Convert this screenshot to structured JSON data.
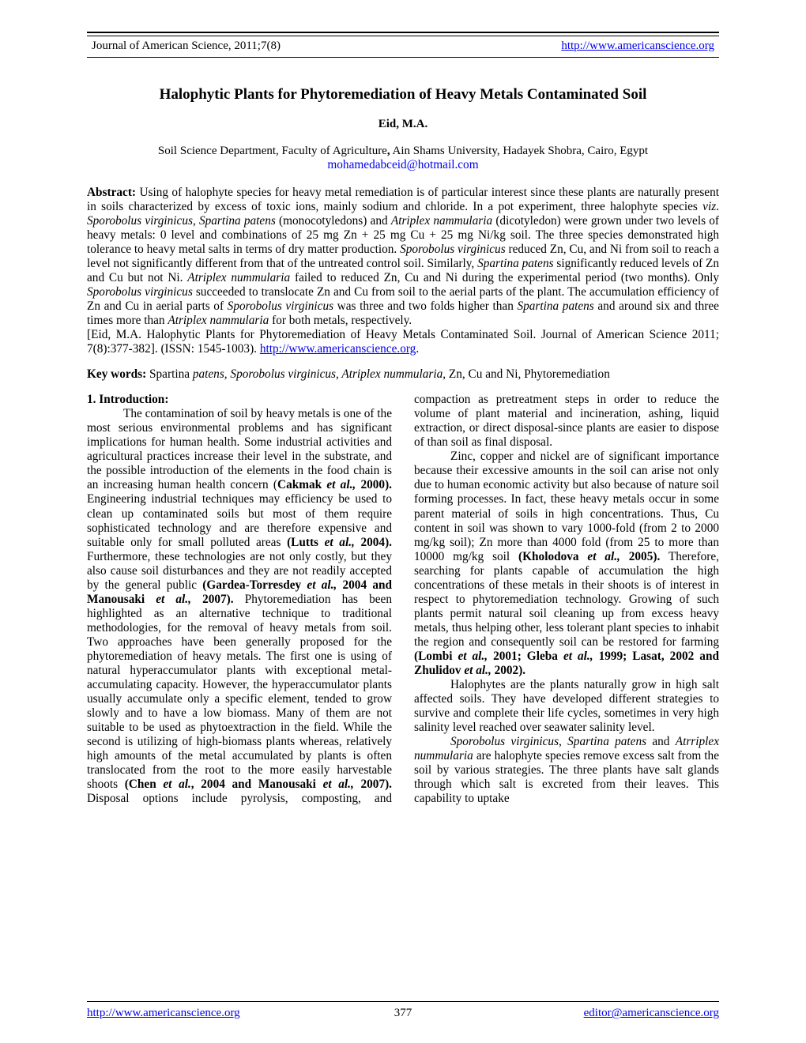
{
  "header": {
    "journal": "Journal of American Science, 2011;7(8)",
    "url_text": "http://www.americanscience.org"
  },
  "title": "Halophytic Plants for Phytoremediation of Heavy Metals Contaminated Soil",
  "author": "Eid, M.A.",
  "affiliation_prefix": "Soil Science Department, Faculty of Agriculture",
  "affiliation_suffix": " Ain Shams University, Hadayek Shobra, Cairo, Egypt",
  "email": "mohamedabceid@hotmail.com",
  "abstract": {
    "label": "Abstract:",
    "pre_viz": " Using of halophyte species for heavy metal remediation is of particular interest since these plants are naturally present in soils characterized by excess of toxic ions, mainly sodium and chloride. In a pot experiment, three halophyte species ",
    "viz": "viz",
    "post_viz_punct": ". ",
    "sp1": "Sporobolus virginicus",
    "sep1": ", ",
    "sp2": "Spartina patens",
    "mid1": " (monocotyledons) and ",
    "sp3": "Atriplex nammularia",
    "post_sp3": " (dicotyledon) were grown under two levels of heavy metals: 0 level and combinations of 25 mg Zn + 25 mg Cu + 25 mg Ni/kg soil. The three species demonstrated high tolerance to heavy metal salts in terms of dry matter production. ",
    "sp1b": "Sporobolus virginicus",
    "mid2": " reduced Zn, Cu, and Ni from soil to reach a level not significantly different from that of the untreated control soil. Similarly, ",
    "sp2b": "Spartina patens",
    "mid3": " significantly reduced levels of Zn and Cu but not Ni. ",
    "sp3b": "Atriplex nummularia",
    "mid4": " failed to reduced Zn, Cu and Ni during the experimental period (two months). Only ",
    "sp1c": "Sporobolus virginicus",
    "mid5": " succeeded to translocate Zn and Cu from soil to the aerial parts of the plant. The accumulation efficiency of Zn and Cu in aerial parts of ",
    "sp1d": "Sporobolus virginicus",
    "mid6": " was three and two folds higher than ",
    "sp2c": "Spartina patens",
    "mid7": " and around six and three times more than ",
    "sp3c": "Atriplex nammularia",
    "tail": " for both metals, respectively."
  },
  "citation": {
    "pre": "[Eid, M.A. Halophytic Plants for Phytoremediation of Heavy Metals Contaminated Soil. Journal of American Science 2011; 7(8):377-382]. (ISSN: 1545-1003). ",
    "link": "http://www.americanscience.org",
    "post": "."
  },
  "keywords": {
    "label": "Key words:",
    "pre_italic": " Spartina ",
    "italic": "patens, Sporobolus virginicus, Atriplex nummularia",
    "tail": ", Zn, Cu and Ni, Phytoremediation"
  },
  "body": {
    "sec1_head": "1. Introduction:",
    "p1a": "The contamination of soil by heavy metals is one of the most serious environmental problems and has significant implications for human health. Some industrial activities and agricultural practices increase their level in the substrate, and the possible introduction of the elements in the food chain is an increasing human health concern (",
    "p1_ref1_a": "Cakmak ",
    "p1_ref1_i": "et al.,",
    "p1_ref1_b": " 2000).",
    "p1b": " Engineering industrial techniques may efficiency be used to clean up contaminated soils but most of them require sophisticated technology and are therefore expensive and suitable only for small polluted areas ",
    "p1_ref2_a": "(Lutts ",
    "p1_ref2_i": "et al.,",
    "p1_ref2_b": " 2004).",
    "p1c": " Furthermore, these technologies are not only costly, but they also cause soil disturbances and they are not readily accepted by the general public ",
    "p1_ref3_a": "(Gardea-Torresdey ",
    "p1_ref3_i": "et al.,",
    "p1_ref3_b": " 2004 and Manousaki ",
    "p1_ref3_i2": "et al.,",
    "p1_ref3_c": " 2007).",
    "p1d": " Phytoremediation has been highlighted as an alternative technique to traditional methodologies, for the removal of heavy metals from soil. Two approaches have been generally proposed for the phytoremediation of heavy metals. The first one is using of natural hyperaccumulator plants with exceptional metal-accumulating capacity. However, the hyperaccumulator plants usually accumulate only a specific element, tended to grow slowly and to have a low biomass. Many of them are not suitable to be used as phytoextraction in the field. While the second is utilizing of high-biomass plants whereas, relatively high amounts of the metal accumulated by plants is often translocated from the root to the more easily harvestable shoots ",
    "p1_ref4_a": "(Chen ",
    "p1_ref4_i": "et al.",
    "p1_ref4_b": ", 2004 and Manousaki ",
    "p1_ref4_i2": "et al.,",
    "p1_ref4_c": " 2007).",
    "p1e": " Disposal options include pyrolysis, composting, and compaction as pretreatment steps in order to reduce the volume of plant material and incineration, ashing, liquid extraction, or direct disposal-since plants are easier to dispose of than soil as final disposal.",
    "p2a": "Zinc, copper and nickel are of significant importance because their excessive amounts in the soil can arise not only due to human economic activity but also because of nature soil forming processes. In fact, these heavy metals occur in some parent material of soils in high concentrations. Thus, Cu content in soil was shown to vary 1000-fold (from 2 to 2000 mg/kg soil); Zn more than 4000 fold (from 25 to more than 10000 mg/kg soil ",
    "p2_ref1_a": "(Kholodova ",
    "p2_ref1_i": "et al.,",
    "p2_ref1_b": " 2005).",
    "p2b": " Therefore, searching for plants capable of accumulation the high concentrations of these metals in their shoots is of interest in respect to phytoremediation technology. Growing of such plants permit natural soil cleaning up from excess heavy metals, thus helping other, less tolerant plant species to inhabit the region and consequently soil can be restored for farming ",
    "p2_ref2_a": "(Lombi ",
    "p2_ref2_i": "et al.,",
    "p2_ref2_b": " 2001; Gleba ",
    "p2_ref2_i2": "et al.,",
    "p2_ref2_c": " 1999; Lasat, 2002 and Zhulidov ",
    "p2_ref2_i3": "et al.,",
    "p2_ref2_d": " 2002).",
    "p3": "Halophytes are the plants naturally grow in high salt affected soils. They have developed different strategies to survive and complete their life cycles, sometimes in very high salinity level reached over seawater salinity level.",
    "p4_sp1": "Sporobolus virginicus",
    "p4_sep1": ", ",
    "p4_sp2": "Spartina patens",
    "p4_mid": " and ",
    "p4_sp3": "Atrriplex nummularia",
    "p4_tail": " are halophyte species remove excess salt from the soil by various strategies. The three plants have salt glands through which salt is excreted from their leaves. This capability to uptake"
  },
  "footer": {
    "left": "http://www.americanscience.org",
    "page": "377",
    "right": "editor@americanscience.org"
  }
}
